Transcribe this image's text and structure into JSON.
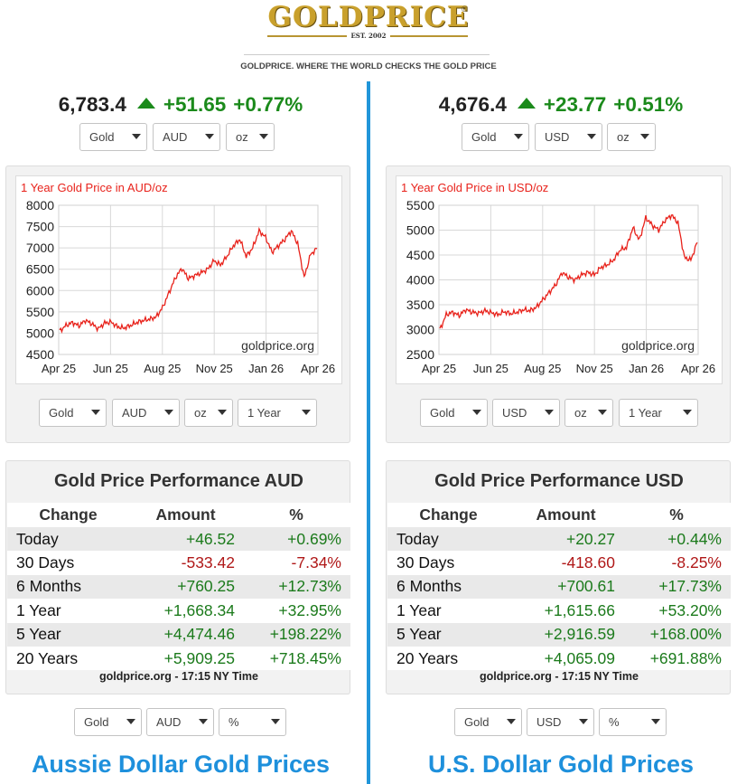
{
  "header": {
    "logo_text": "GOLDPRICE",
    "logo_est": "EST. 2002",
    "tagline": "GOLDPRICE. WHERE THE WORLD CHECKS THE GOLD PRICE"
  },
  "colors": {
    "up": "#1b8a1b",
    "negative": "#b01818",
    "accent": "#1e90dc",
    "chart_line": "#e8221b",
    "gold": "#c9a02c"
  },
  "panels": [
    {
      "quote": {
        "price": "6,783.4",
        "change": "+51.65",
        "percent": "+0.77%",
        "direction": "up",
        "icon": "triangle-up-icon"
      },
      "top_selects": {
        "metal": "Gold",
        "currency": "AUD",
        "unit": "oz"
      },
      "chart_data": {
        "type": "line",
        "title": "1 Year Gold Price in AUD/oz",
        "watermark": "goldprice.org",
        "ylim": [
          4500,
          8000
        ],
        "yticks": [
          "8000",
          "7500",
          "7000",
          "6500",
          "6000",
          "5500",
          "5000",
          "4500"
        ],
        "xticks": [
          "Apr 25",
          "Jun 25",
          "Aug 25",
          "Nov 25",
          "Jan 26",
          "Apr 26"
        ],
        "grid": true,
        "series": [
          {
            "values": [
              5050,
              5180,
              5250,
              5170,
              5300,
              5220,
              5100,
              5240,
              5260,
              5150,
              5120,
              5180,
              5250,
              5300,
              5330,
              5380,
              5600,
              5950,
              6300,
              6520,
              6280,
              6350,
              6420,
              6500,
              6700,
              6600,
              6800,
              7050,
              7200,
              6800,
              7000,
              7400,
              7250,
              6900,
              7050,
              7200,
              7400,
              7100,
              6300,
              6850,
              6980
            ]
          }
        ]
      },
      "bottom_selects": {
        "metal": "Gold",
        "currency": "AUD",
        "unit": "oz",
        "range": "1 Year"
      },
      "performance": {
        "title": "Gold Price Performance AUD",
        "headers": {
          "change": "Change",
          "amount": "Amount",
          "percent": "%"
        },
        "rows": [
          {
            "label": "Today",
            "amount": "+46.52",
            "percent": "+0.69%",
            "sign": "pos"
          },
          {
            "label": "30 Days",
            "amount": "-533.42",
            "percent": "-7.34%",
            "sign": "neg"
          },
          {
            "label": "6 Months",
            "amount": "+760.25",
            "percent": "+12.73%",
            "sign": "pos"
          },
          {
            "label": "1 Year",
            "amount": "+1,668.34",
            "percent": "+32.95%",
            "sign": "pos"
          },
          {
            "label": "5 Year",
            "amount": "+4,474.46",
            "percent": "+198.22%",
            "sign": "pos"
          },
          {
            "label": "20 Years",
            "amount": "+5,909.25",
            "percent": "+718.45%",
            "sign": "pos"
          }
        ],
        "footer": "goldprice.org - 17:15 NY Time",
        "selects": {
          "metal": "Gold",
          "currency": "AUD",
          "mode": "%"
        }
      },
      "bottom_title": "Aussie Dollar Gold Prices"
    },
    {
      "quote": {
        "price": "4,676.4",
        "change": "+23.77",
        "percent": "+0.51%",
        "direction": "up",
        "icon": "triangle-up-icon"
      },
      "top_selects": {
        "metal": "Gold",
        "currency": "USD",
        "unit": "oz"
      },
      "chart_data": {
        "type": "line",
        "title": "1 Year Gold Price in USD/oz",
        "watermark": "goldprice.org",
        "ylim": [
          2500,
          5500
        ],
        "yticks": [
          "5500",
          "5000",
          "4500",
          "4000",
          "3500",
          "3000",
          "2500"
        ],
        "xticks": [
          "Apr 25",
          "Jun 25",
          "Aug 25",
          "Nov 25",
          "Jan 26",
          "Apr 26"
        ],
        "grid": true,
        "series": [
          {
            "values": [
              3000,
              3300,
              3350,
              3280,
              3400,
              3350,
              3330,
              3380,
              3340,
              3300,
              3360,
              3320,
              3350,
              3400,
              3380,
              3450,
              3600,
              3750,
              3900,
              4150,
              4050,
              4000,
              4100,
              4150,
              4100,
              4250,
              4300,
              4400,
              4600,
              4650,
              5050,
              4800,
              5250,
              5100,
              5000,
              5200,
              5300,
              5150,
              4450,
              4400,
              4750
            ]
          }
        ]
      },
      "bottom_selects": {
        "metal": "Gold",
        "currency": "USD",
        "unit": "oz",
        "range": "1 Year"
      },
      "performance": {
        "title": "Gold Price Performance USD",
        "headers": {
          "change": "Change",
          "amount": "Amount",
          "percent": "%"
        },
        "rows": [
          {
            "label": "Today",
            "amount": "+20.27",
            "percent": "+0.44%",
            "sign": "pos"
          },
          {
            "label": "30 Days",
            "amount": "-418.60",
            "percent": "-8.25%",
            "sign": "neg"
          },
          {
            "label": "6 Months",
            "amount": "+700.61",
            "percent": "+17.73%",
            "sign": "pos"
          },
          {
            "label": "1 Year",
            "amount": "+1,615.66",
            "percent": "+53.20%",
            "sign": "pos"
          },
          {
            "label": "5 Year",
            "amount": "+2,916.59",
            "percent": "+168.00%",
            "sign": "pos"
          },
          {
            "label": "20 Years",
            "amount": "+4,065.09",
            "percent": "+691.88%",
            "sign": "pos"
          }
        ],
        "footer": "goldprice.org - 17:15 NY Time",
        "selects": {
          "metal": "Gold",
          "currency": "USD",
          "mode": "%"
        }
      },
      "bottom_title": "U.S. Dollar Gold Prices"
    }
  ]
}
